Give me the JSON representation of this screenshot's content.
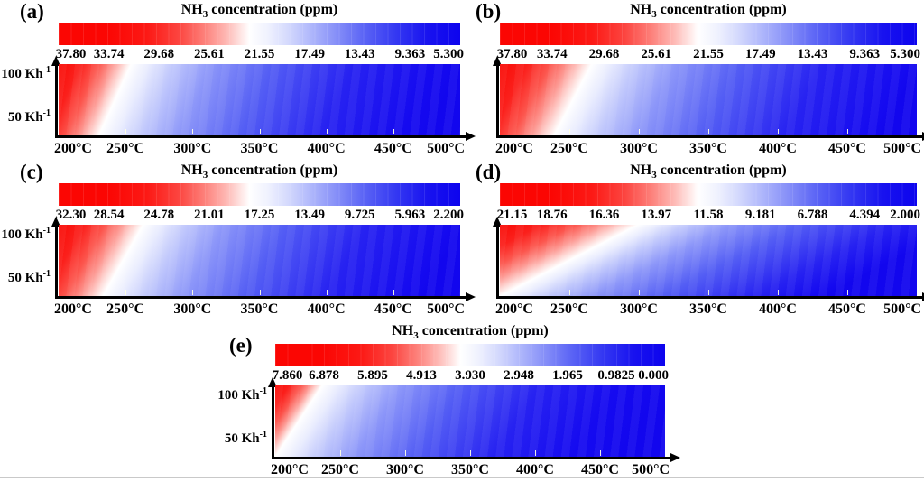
{
  "chart_data": {
    "type": "heatmap",
    "figure_title": {
      "prefix": "NH",
      "sub": "3",
      "suffix": " concentration (ppm)"
    },
    "colorbar_position": "top",
    "colormap": {
      "orientation": "high-on-left",
      "high_color": "#fb0603",
      "mid_color": "#ffffff",
      "low_color": "#0d04ee"
    },
    "x_axis": {
      "unit": "°C",
      "range": [
        200,
        500
      ],
      "ticks": [
        "200°C",
        "250°C",
        "300°C",
        "350°C",
        "400°C",
        "450°C",
        "500°C"
      ]
    },
    "y_axis": {
      "unit": "Kh⁻¹",
      "ticks": [
        {
          "text": "100 Kh",
          "sup": "-1"
        },
        {
          "text": "50 Kh",
          "sup": "-1"
        }
      ]
    },
    "panels": [
      {
        "id": "a",
        "label": "(a)",
        "colorbar_ticks": [
          "37.80",
          "33.74",
          "29.68",
          "25.61",
          "21.55",
          "17.49",
          "13.43",
          "9.363",
          "5.300"
        ],
        "value_max": 37.8,
        "value_min": 5.3,
        "show_y_labels": true,
        "white_band": {
          "top_frac": 0.18,
          "bottom_frac": 0.1
        }
      },
      {
        "id": "b",
        "label": "(b)",
        "colorbar_ticks": [
          "37.80",
          "33.74",
          "29.68",
          "25.61",
          "21.55",
          "17.49",
          "13.43",
          "9.363",
          "5.300"
        ],
        "value_max": 37.8,
        "value_min": 5.3,
        "show_y_labels": false,
        "white_band": {
          "top_frac": 0.22,
          "bottom_frac": 0.13
        }
      },
      {
        "id": "c",
        "label": "(c)",
        "colorbar_ticks": [
          "32.30",
          "28.54",
          "24.78",
          "21.01",
          "17.25",
          "13.49",
          "9.725",
          "5.963",
          "2.200"
        ],
        "value_max": 32.3,
        "value_min": 2.2,
        "show_y_labels": true,
        "white_band": {
          "top_frac": 0.21,
          "bottom_frac": 0.11
        }
      },
      {
        "id": "d",
        "label": "(d)",
        "colorbar_ticks": [
          "21.15",
          "18.76",
          "16.36",
          "13.97",
          "11.58",
          "9.181",
          "6.788",
          "4.394",
          "2.000"
        ],
        "value_max": 21.15,
        "value_min": 2.0,
        "show_y_labels": false,
        "white_band": {
          "top_frac": 0.33,
          "bottom_frac": 0.0
        }
      },
      {
        "id": "e",
        "label": "(e)",
        "colorbar_ticks": [
          "7.860",
          "6.878",
          "5.895",
          "4.913",
          "3.930",
          "2.948",
          "1.965",
          "0.9825",
          "0.000"
        ],
        "value_max": 7.86,
        "value_min": 0.0,
        "show_y_labels": true,
        "white_band": {
          "top_frac": 0.12,
          "bottom_frac": 0.0
        }
      }
    ]
  }
}
